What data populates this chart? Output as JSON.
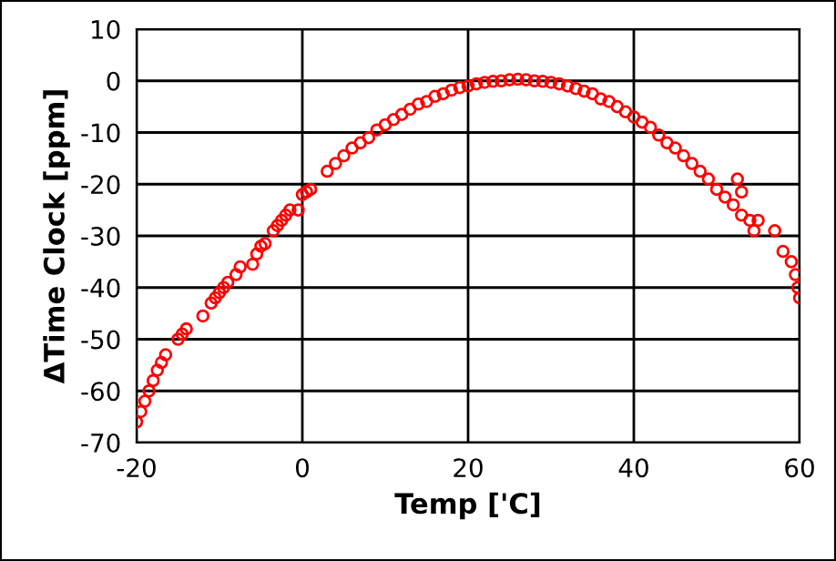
{
  "chart_data": {
    "type": "scatter",
    "xlabel": "Temp ['C]",
    "ylabel": "ΔTime Clock [ppm]",
    "xlim": [
      -20,
      60
    ],
    "xticks": [
      -20,
      0,
      20,
      40,
      60
    ],
    "ylim": [
      -70,
      10
    ],
    "yticks": [
      -70,
      -60,
      -50,
      -40,
      -30,
      -20,
      -10,
      0,
      10
    ],
    "grid": true,
    "marker": "circle",
    "series": [
      {
        "color": "#ff0000",
        "x": [
          -20,
          -19.5,
          -19,
          -18.5,
          -18,
          -17.5,
          -17,
          -16.5,
          -15,
          -14.5,
          -14,
          -12,
          -11,
          -10.5,
          -10,
          -9.5,
          -9,
          -8,
          -7.5,
          -6,
          -5.5,
          -5,
          -4.5,
          -3.5,
          -3,
          -2.5,
          -2,
          -1.5,
          -0.5,
          0,
          0.5,
          1,
          3,
          4,
          5,
          6,
          7,
          8,
          9,
          10,
          11,
          12,
          13,
          14,
          15,
          16,
          17,
          18,
          19,
          20,
          21,
          22,
          23,
          24,
          25,
          26,
          27,
          28,
          29,
          30,
          31,
          32,
          33,
          34,
          35,
          36,
          37,
          38,
          39,
          40,
          41,
          42,
          43,
          44,
          45,
          46,
          47,
          48,
          49,
          50,
          51,
          52,
          52.5,
          53,
          53,
          54,
          54.5,
          55,
          57,
          58,
          59,
          59.5,
          59.8,
          60
        ],
        "values": [
          -66,
          -64,
          -62,
          -60,
          -58,
          -56,
          -54.5,
          -53,
          -50,
          -49,
          -48,
          -45.5,
          -43,
          -42,
          -41,
          -40,
          -39,
          -37.5,
          -36,
          -35.5,
          -33.5,
          -32,
          -31.5,
          -29,
          -28,
          -27,
          -26,
          -25,
          -25,
          -22,
          -21.5,
          -21,
          -17.5,
          -16,
          -14.5,
          -13,
          -12,
          -11,
          -9.5,
          -8.5,
          -7.5,
          -6.5,
          -5.5,
          -4.5,
          -4,
          -3,
          -2.5,
          -1.8,
          -1.3,
          -1,
          -0.6,
          -0.3,
          -0.1,
          0,
          0.2,
          0.3,
          0.2,
          0,
          -0.1,
          -0.3,
          -0.6,
          -1,
          -1.5,
          -2,
          -2.5,
          -3.5,
          -4,
          -5,
          -6,
          -7,
          -8,
          -9,
          -10.5,
          -12,
          -13,
          -14.5,
          -16,
          -17.5,
          -19,
          -21,
          -22.5,
          -24,
          -19,
          -26,
          -21.5,
          -27,
          -29,
          -27,
          -29,
          -33,
          -35,
          -37.5,
          -40,
          -42
        ]
      }
    ]
  }
}
